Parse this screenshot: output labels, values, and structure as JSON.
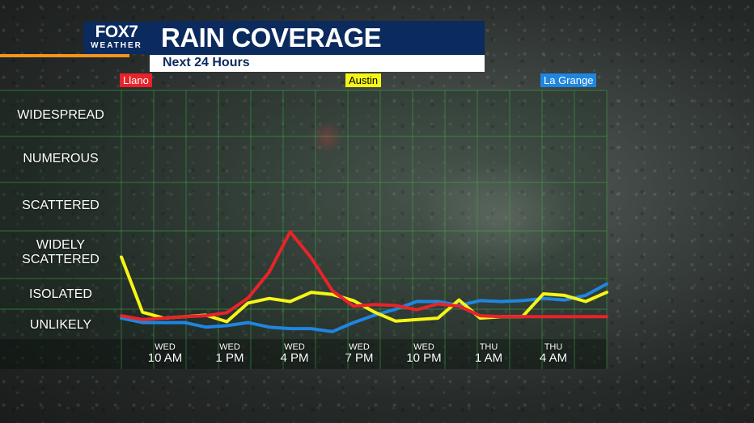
{
  "brand": {
    "logo_main": "FOX7",
    "logo_sub": "WEATHER",
    "accent_orange": "#f7941d",
    "navy": "#0b2a5e"
  },
  "header": {
    "title": "RAIN COVERAGE",
    "subtitle": "Next 24 Hours"
  },
  "chart_data": {
    "type": "line",
    "title": "RAIN COVERAGE",
    "subtitle": "Next 24 Hours",
    "y_levels": [
      "UNLIKELY",
      "ISOLATED",
      "WIDELY SCATTERED",
      "SCATTERED",
      "NUMEROUS",
      "WIDESPREAD"
    ],
    "y_level_display": [
      "UNLIKELY",
      "ISOLATED",
      "WIDELY\nSCATTERED",
      "SCATTERED",
      "NUMEROUS",
      "WIDESPREAD"
    ],
    "ylim": [
      0,
      6
    ],
    "x_labels": [
      {
        "day": "WED",
        "time": "10 AM"
      },
      {
        "day": "WED",
        "time": "1 PM"
      },
      {
        "day": "WED",
        "time": "4 PM"
      },
      {
        "day": "WED",
        "time": "7 PM"
      },
      {
        "day": "WED",
        "time": "10 PM"
      },
      {
        "day": "THU",
        "time": "1 AM"
      },
      {
        "day": "THU",
        "time": "4 AM"
      }
    ],
    "x_hours": [
      0,
      1,
      2,
      3,
      4,
      5,
      6,
      7,
      8,
      9,
      10,
      11,
      12,
      13,
      14,
      15,
      16,
      17,
      18,
      19,
      20,
      21,
      22,
      23
    ],
    "grid": true,
    "series": [
      {
        "name": "Llano",
        "color": "#e8232a",
        "values": [
          0.78,
          0.65,
          0.7,
          0.75,
          0.78,
          0.88,
          1.36,
          2.13,
          2.98,
          2.43,
          1.6,
          1.1,
          1.15,
          1.12,
          0.98,
          1.17,
          1.1,
          0.78,
          0.75,
          0.75,
          0.75,
          0.75,
          0.75,
          0.75
        ]
      },
      {
        "name": "Austin",
        "color": "#f5f516",
        "values": [
          2.45,
          0.9,
          0.7,
          0.75,
          0.8,
          0.58,
          1.2,
          1.35,
          1.25,
          1.55,
          1.48,
          1.28,
          0.9,
          0.6,
          0.65,
          0.7,
          1.3,
          0.7,
          0.75,
          0.75,
          1.5,
          1.45,
          1.25,
          1.55
        ]
      },
      {
        "name": "La Grange",
        "color": "#1f86e0",
        "values": [
          0.7,
          0.55,
          0.55,
          0.55,
          0.4,
          0.45,
          0.55,
          0.4,
          0.35,
          0.35,
          0.25,
          0.55,
          0.8,
          1.0,
          1.25,
          1.25,
          1.12,
          1.28,
          1.25,
          1.28,
          1.35,
          1.3,
          1.45,
          1.82
        ]
      }
    ]
  }
}
